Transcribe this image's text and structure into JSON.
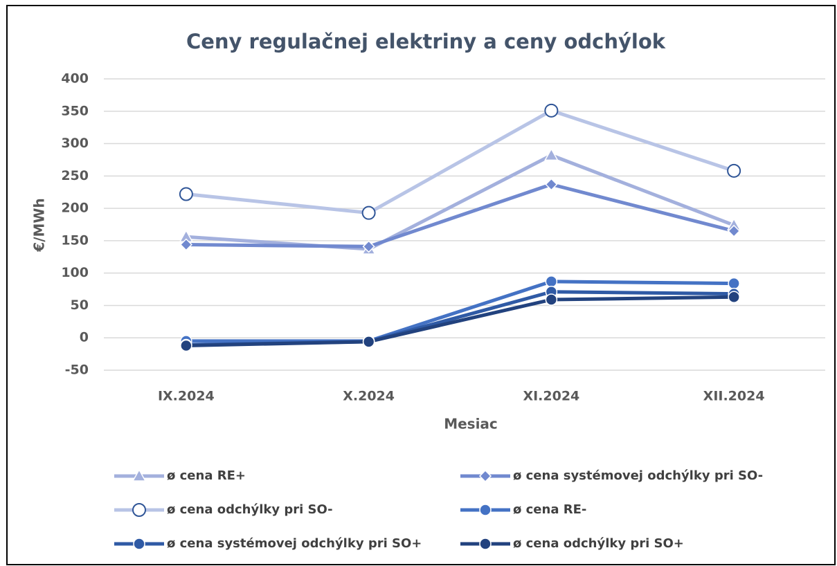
{
  "chart_data": {
    "type": "line",
    "title": "Ceny regulačnej elektriny a ceny odchýlok",
    "x_label": "Mesiac",
    "y_label": "€/MWh",
    "categories": [
      "IX.2024",
      "X.2024",
      "XI.2024",
      "XII.2024"
    ],
    "series": [
      {
        "name": "ø cena RE+",
        "color": "#a3b0dd",
        "marker": "triangle",
        "values": [
          156,
          137,
          282,
          174
        ]
      },
      {
        "name": "ø cena systémovej odchýlky pri SO-",
        "color": "#7189cf",
        "marker": "diamond",
        "values": [
          144,
          141,
          237,
          165
        ]
      },
      {
        "name": "ø cena odchýlky pri SO-",
        "color": "#b8c4e6",
        "marker": "circle-open",
        "values": [
          222,
          193,
          351,
          258
        ]
      },
      {
        "name": "ø cena RE-",
        "color": "#4472c4",
        "marker": "circle",
        "values": [
          -5,
          -5,
          87,
          84
        ]
      },
      {
        "name": "ø cena systémovej odchýlky pri SO+",
        "color": "#2f5aa5",
        "marker": "circle",
        "values": [
          -11,
          -6,
          71,
          68
        ]
      },
      {
        "name": "ø cena odchýlky pri SO+",
        "color": "#22427e",
        "marker": "circle",
        "values": [
          -12,
          -6,
          59,
          63
        ]
      }
    ],
    "ylim": [
      -50,
      400
    ],
    "yticks": [
      -50,
      0,
      50,
      100,
      150,
      200,
      250,
      300,
      350,
      400
    ],
    "grid": true,
    "legend": "bottom"
  }
}
